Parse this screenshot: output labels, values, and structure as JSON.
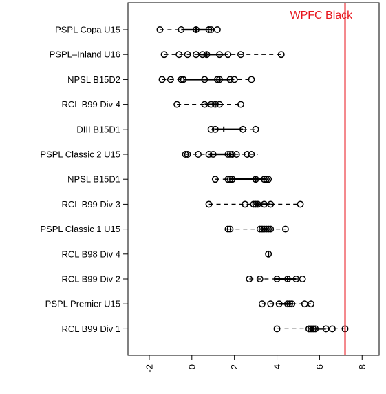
{
  "chart_data": {
    "type": "box",
    "orientation": "horizontal",
    "title": "",
    "xlabel": "",
    "ylabel": "",
    "xlim": [
      -3.0,
      8.8
    ],
    "x_ticks": [
      -2,
      0,
      2,
      4,
      6,
      8
    ],
    "x_tick_labels": [
      "-2",
      "0",
      "2",
      "4",
      "6",
      "8"
    ],
    "grid": false,
    "reference_line": {
      "x": 7.2,
      "label": "WPFC Black",
      "color": "#e8141c"
    },
    "colors": {
      "points": "#000000",
      "box": "#000000",
      "axis": "#000000",
      "reference": "#e8141c"
    },
    "groups": [
      {
        "label": "PSPL Copa U15",
        "box": {
          "min": -1.5,
          "q1": -0.5,
          "median": 0.2,
          "q3": 0.9,
          "max": 1.2
        },
        "points": [
          -1.5,
          -0.5,
          0.2,
          0.8,
          0.9,
          1.2
        ]
      },
      {
        "label": "PSPL–Inland U16",
        "box": {
          "min": -1.3,
          "q1": 0.3,
          "median": 0.7,
          "q3": 1.5,
          "max": 4.2
        },
        "points": [
          -1.3,
          -0.6,
          -0.2,
          0.2,
          0.5,
          0.7,
          1.3,
          1.7,
          2.3,
          4.2
        ]
      },
      {
        "label": "NPSL B15D2",
        "box": {
          "min": -1.4,
          "q1": -0.4,
          "median": 1.3,
          "q3": 1.8,
          "max": 2.8
        },
        "points": [
          -1.4,
          -1.0,
          -0.5,
          -0.4,
          0.6,
          1.2,
          1.3,
          1.8,
          2.0,
          2.8
        ]
      },
      {
        "label": "RCL B99 Div 4",
        "box": {
          "min": -0.7,
          "q1": 0.6,
          "median": 1.1,
          "q3": 1.3,
          "max": 2.3
        },
        "points": [
          -0.7,
          0.6,
          0.9,
          1.1,
          1.3,
          2.3
        ]
      },
      {
        "label": "DIII B15D1",
        "box": {
          "min": 0.9,
          "q1": 1.1,
          "median": 1.5,
          "q3": 2.4,
          "max": 3.0
        },
        "points": [
          0.9,
          1.1,
          2.4,
          3.0
        ]
      },
      {
        "label": "PSPL Classic 2 U15",
        "box": {
          "min": -0.3,
          "q1": 0.8,
          "median": 1.8,
          "q3": 2.0,
          "max": 3.1
        },
        "points": [
          -0.3,
          -0.2,
          0.3,
          0.8,
          1.0,
          1.7,
          1.8,
          1.9,
          2.1,
          2.6,
          2.8
        ]
      },
      {
        "label": "NPSL B15D1",
        "box": {
          "min": 1.1,
          "q1": 1.8,
          "median": 3.0,
          "q3": 3.5,
          "max": 3.6
        },
        "points": [
          1.1,
          1.7,
          1.8,
          1.9,
          3.0,
          3.4,
          3.5,
          3.6
        ]
      },
      {
        "label": "RCL B99 Div 3",
        "box": {
          "min": 0.8,
          "q1": 2.9,
          "median": 3.1,
          "q3": 3.7,
          "max": 5.1
        },
        "points": [
          0.8,
          2.5,
          2.9,
          3.0,
          3.1,
          3.4,
          3.7,
          5.1
        ]
      },
      {
        "label": "PSPL Classic 1 U15",
        "box": {
          "min": 1.7,
          "q1": 3.2,
          "median": 3.5,
          "q3": 3.6,
          "max": 4.4
        },
        "points": [
          1.7,
          1.8,
          3.2,
          3.3,
          3.4,
          3.5,
          3.6,
          3.7,
          4.4
        ]
      },
      {
        "label": "RCL B98 Div 4",
        "box": {
          "min": 3.6,
          "q1": 3.6,
          "median": 3.6,
          "q3": 3.6,
          "max": 3.6
        },
        "points": [
          3.6
        ]
      },
      {
        "label": "RCL B99 Div 2",
        "box": {
          "min": 2.7,
          "q1": 3.9,
          "median": 4.5,
          "q3": 4.9,
          "max": 5.2
        },
        "points": [
          2.7,
          3.2,
          4.0,
          4.5,
          4.9,
          5.2
        ]
      },
      {
        "label": "PSPL Premier U15",
        "box": {
          "min": 3.3,
          "q1": 4.1,
          "median": 4.6,
          "q3": 4.7,
          "max": 5.6
        },
        "points": [
          3.3,
          3.7,
          4.1,
          4.5,
          4.6,
          4.7,
          5.3,
          5.6
        ]
      },
      {
        "label": "RCL B99 Div 1",
        "box": {
          "min": 4.0,
          "q1": 5.5,
          "median": 5.7,
          "q3": 6.3,
          "max": 7.2
        },
        "points": [
          4.0,
          5.5,
          5.6,
          5.7,
          5.8,
          6.3,
          6.6,
          7.2
        ]
      }
    ]
  }
}
